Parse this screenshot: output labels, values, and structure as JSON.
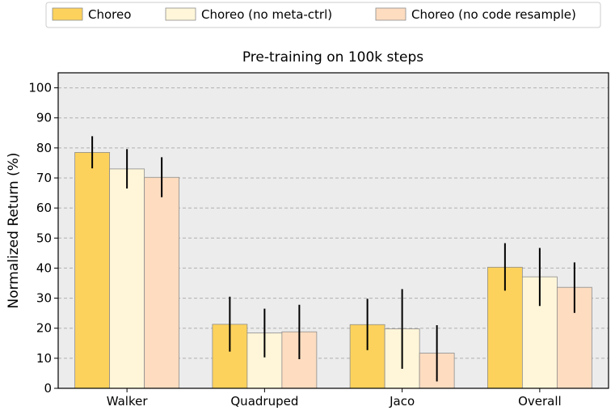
{
  "chart_data": {
    "type": "bar",
    "title": "Pre-training on 100k steps",
    "xlabel": "",
    "ylabel": "Normalized Return (%)",
    "ylim": [
      0,
      105
    ],
    "yticks": [
      0,
      10,
      20,
      30,
      40,
      50,
      60,
      70,
      80,
      90,
      100
    ],
    "grid": true,
    "legend_position": "top",
    "categories": [
      "Walker",
      "Quadruped",
      "Jaco",
      "Overall"
    ],
    "series": [
      {
        "name": "Choreo",
        "color": "#fdd25c",
        "values": [
          78.5,
          21.3,
          21.2,
          40.3
        ],
        "err_low": [
          73.2,
          12.2,
          12.7,
          32.5
        ],
        "err_high": [
          83.9,
          30.5,
          29.8,
          48.3
        ]
      },
      {
        "name": "Choreo (no meta-ctrl)",
        "color": "#fff6d9",
        "values": [
          73.0,
          18.4,
          19.8,
          37.1
        ],
        "err_low": [
          66.5,
          10.3,
          6.5,
          27.4
        ],
        "err_high": [
          79.6,
          26.5,
          33.0,
          46.7
        ]
      },
      {
        "name": "Choreo (no code resample)",
        "color": "#fddcc0",
        "values": [
          70.2,
          18.8,
          11.7,
          33.6
        ],
        "err_low": [
          63.6,
          9.7,
          2.3,
          25.1
        ],
        "err_high": [
          76.9,
          27.8,
          21.0,
          41.9
        ]
      }
    ]
  }
}
